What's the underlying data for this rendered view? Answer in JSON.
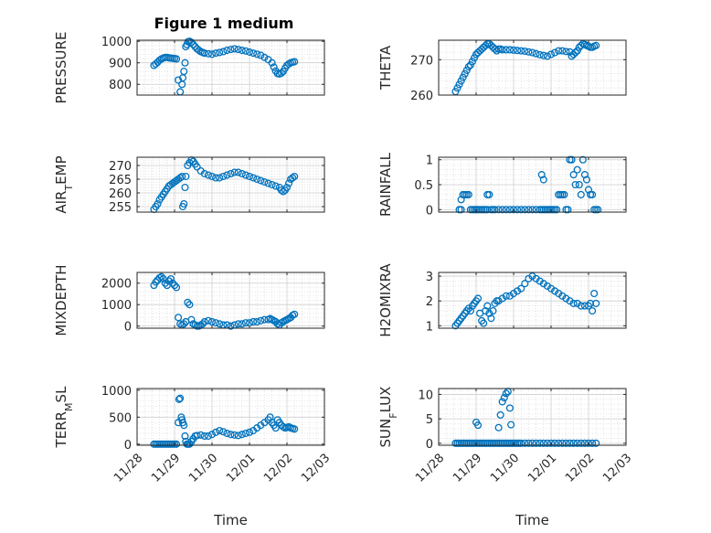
{
  "figure": {
    "title": "Figure 1 medium",
    "marker_color": "#0072bd",
    "x_tick_labels": [
      "11/28",
      "11/29",
      "11/30",
      "12/01",
      "12/02",
      "12/03"
    ]
  },
  "chart_data": [
    {
      "type": "scatter",
      "title": "Figure 1 medium",
      "ylabel": "PRESSURE",
      "xlabel": "",
      "xlim": [
        0,
        5
      ],
      "ylim": [
        750,
        1005
      ],
      "yticks": [
        800,
        900,
        1000
      ],
      "x_tick_labels": [
        "11/28",
        "11/29",
        "11/30",
        "12/01",
        "12/02",
        "12/03"
      ],
      "grid": true,
      "x": [
        0.45,
        0.5,
        0.55,
        0.6,
        0.65,
        0.7,
        0.75,
        0.8,
        0.85,
        0.9,
        0.95,
        1.0,
        1.05,
        1.1,
        1.15,
        1.2,
        1.22,
        1.25,
        1.28,
        1.3,
        1.33,
        1.36,
        1.4,
        1.45,
        1.5,
        1.55,
        1.6,
        1.65,
        1.7,
        1.75,
        1.8,
        1.9,
        2.0,
        2.1,
        2.2,
        2.3,
        2.4,
        2.5,
        2.6,
        2.7,
        2.8,
        2.9,
        3.0,
        3.1,
        3.2,
        3.3,
        3.4,
        3.5,
        3.6,
        3.65,
        3.7,
        3.75,
        3.8,
        3.85,
        3.9,
        3.95,
        4.0,
        4.05,
        4.1,
        4.15,
        4.2
      ],
      "y": [
        888,
        895,
        903,
        912,
        918,
        922,
        925,
        925,
        923,
        922,
        921,
        920,
        918,
        820,
        765,
        800,
        830,
        860,
        900,
        975,
        985,
        998,
        1000,
        995,
        985,
        975,
        965,
        958,
        952,
        948,
        945,
        942,
        940,
        945,
        948,
        952,
        958,
        962,
        965,
        962,
        958,
        955,
        950,
        945,
        940,
        935,
        925,
        915,
        900,
        880,
        862,
        850,
        848,
        852,
        860,
        875,
        888,
        895,
        900,
        903,
        905
      ]
    },
    {
      "type": "scatter",
      "title": "",
      "ylabel": "THETA",
      "xlabel": "",
      "xlim": [
        0,
        5
      ],
      "ylim": [
        260,
        275.5
      ],
      "yticks": [
        260,
        270
      ],
      "x_tick_labels": [
        "11/28",
        "11/29",
        "11/30",
        "12/01",
        "12/02",
        "12/03"
      ],
      "grid": true,
      "x": [
        0.45,
        0.5,
        0.55,
        0.6,
        0.65,
        0.7,
        0.75,
        0.8,
        0.85,
        0.9,
        0.95,
        1.0,
        1.05,
        1.1,
        1.15,
        1.2,
        1.25,
        1.3,
        1.35,
        1.4,
        1.45,
        1.5,
        1.55,
        1.6,
        1.65,
        1.7,
        1.8,
        1.9,
        2.0,
        2.1,
        2.2,
        2.3,
        2.4,
        2.5,
        2.6,
        2.7,
        2.8,
        2.9,
        3.0,
        3.1,
        3.2,
        3.3,
        3.4,
        3.5,
        3.55,
        3.6,
        3.65,
        3.7,
        3.75,
        3.8,
        3.85,
        3.9,
        3.95,
        4.0,
        4.05,
        4.1,
        4.15,
        4.2
      ],
      "y": [
        261,
        262,
        263,
        264,
        265,
        266,
        267,
        268,
        268.5,
        269.5,
        270.5,
        271.5,
        272,
        272.5,
        273,
        273.5,
        274,
        274.5,
        274.5,
        274,
        273.5,
        273,
        272.5,
        273,
        273,
        272.8,
        272.8,
        272.8,
        272.7,
        272.6,
        272.5,
        272.4,
        272.2,
        272,
        271.7,
        271.4,
        271.2,
        271,
        271.5,
        272,
        272.5,
        272.5,
        272.3,
        272.2,
        271,
        271.5,
        272,
        272.5,
        273.5,
        274,
        274.5,
        274.3,
        274,
        273.8,
        273.5,
        273.5,
        273.8,
        274
      ]
    },
    {
      "type": "scatter",
      "title": "",
      "ylabel": "AIR_TEMP",
      "xlabel": "",
      "xlim": [
        0,
        5
      ],
      "ylim": [
        253,
        273
      ],
      "yticks": [
        255,
        260,
        265,
        270
      ],
      "x_tick_labels": [
        "11/28",
        "11/29",
        "11/30",
        "12/01",
        "12/02",
        "12/03"
      ],
      "grid": true,
      "x": [
        0.45,
        0.5,
        0.55,
        0.6,
        0.65,
        0.7,
        0.75,
        0.8,
        0.85,
        0.9,
        0.95,
        1.0,
        1.05,
        1.1,
        1.15,
        1.2,
        1.22,
        1.25,
        1.28,
        1.3,
        1.35,
        1.4,
        1.45,
        1.5,
        1.55,
        1.6,
        1.7,
        1.8,
        1.9,
        2.0,
        2.1,
        2.2,
        2.3,
        2.4,
        2.5,
        2.6,
        2.7,
        2.8,
        2.9,
        3.0,
        3.1,
        3.2,
        3.3,
        3.4,
        3.5,
        3.6,
        3.7,
        3.8,
        3.85,
        3.9,
        3.95,
        4.0,
        4.05,
        4.1,
        4.15,
        4.2
      ],
      "y": [
        254,
        255,
        256,
        257.5,
        258.5,
        259.5,
        260.5,
        261.5,
        262.5,
        263,
        263.5,
        264,
        264.5,
        265,
        265.5,
        266,
        255,
        256,
        262,
        266,
        270,
        271,
        272,
        271.5,
        270.5,
        269.5,
        268,
        267,
        266.5,
        266,
        265.5,
        265.5,
        266,
        266.5,
        267,
        267.5,
        267.5,
        267,
        266.5,
        266,
        265.5,
        265,
        264.5,
        264,
        263.5,
        263,
        262.5,
        262,
        261,
        260.5,
        261,
        262,
        263.5,
        265,
        265.5,
        266
      ]
    },
    {
      "type": "scatter",
      "title": "",
      "ylabel": "RAINFALL",
      "xlabel": "",
      "xlim": [
        0,
        5
      ],
      "ylim": [
        -0.05,
        1.05
      ],
      "yticks": [
        0,
        0.5,
        1
      ],
      "x_tick_labels": [
        "11/28",
        "11/29",
        "11/30",
        "12/01",
        "12/02",
        "12/03"
      ],
      "grid": true,
      "x": [
        0.55,
        0.6,
        0.65,
        0.7,
        0.75,
        0.8,
        0.85,
        0.9,
        0.95,
        1.0,
        1.05,
        1.1,
        1.15,
        1.2,
        1.25,
        1.3,
        1.35,
        1.4,
        1.45,
        1.5,
        1.6,
        1.7,
        1.8,
        1.9,
        2.0,
        2.1,
        2.2,
        2.3,
        2.4,
        2.5,
        2.6,
        2.7,
        2.75,
        2.8,
        2.85,
        2.9,
        2.95,
        3.0,
        3.05,
        3.1,
        3.15,
        3.2,
        3.25,
        3.3,
        3.35,
        3.4,
        3.45,
        3.5,
        3.55,
        3.6,
        3.65,
        3.7,
        3.75,
        3.8,
        3.85,
        3.9,
        3.95,
        4.0,
        4.05,
        4.1,
        4.15,
        4.2,
        4.25,
        0.6,
        1.3,
        2.75,
        2.8,
        1.0
      ],
      "y": [
        0,
        0.2,
        0.3,
        0.3,
        0.3,
        0.3,
        0,
        0,
        0,
        0,
        0,
        0,
        0,
        0,
        0,
        0.3,
        0.3,
        0,
        0,
        0,
        0,
        0,
        0,
        0,
        0,
        0,
        0,
        0,
        0,
        0,
        0,
        0,
        0.7,
        0.6,
        0,
        0,
        0,
        0,
        0,
        0,
        0,
        0.3,
        0.3,
        0.3,
        0.3,
        0,
        0,
        1,
        1,
        0.7,
        0.5,
        0.8,
        0.5,
        0.3,
        1,
        0.7,
        0.6,
        0.4,
        0.3,
        0.3,
        0,
        0,
        0,
        0,
        0,
        0,
        0,
        0
      ]
    },
    {
      "type": "scatter",
      "title": "",
      "ylabel": "MIXDEPTH",
      "xlabel": "",
      "xlim": [
        0,
        5
      ],
      "ylim": [
        -100,
        2500
      ],
      "yticks": [
        0,
        1000,
        2000
      ],
      "x_tick_labels": [
        "11/28",
        "11/29",
        "11/30",
        "12/01",
        "12/02",
        "12/03"
      ],
      "grid": true,
      "x": [
        0.45,
        0.5,
        0.55,
        0.6,
        0.65,
        0.7,
        0.75,
        0.8,
        0.85,
        0.9,
        0.95,
        1.0,
        1.05,
        1.1,
        1.15,
        1.2,
        1.25,
        1.3,
        1.35,
        1.4,
        1.45,
        1.5,
        1.55,
        1.6,
        1.65,
        1.7,
        1.75,
        1.8,
        1.9,
        2.0,
        2.1,
        2.2,
        2.3,
        2.4,
        2.5,
        2.6,
        2.7,
        2.8,
        2.9,
        3.0,
        3.1,
        3.2,
        3.3,
        3.4,
        3.5,
        3.55,
        3.6,
        3.65,
        3.7,
        3.75,
        3.8,
        3.85,
        3.9,
        3.95,
        4.0,
        4.05,
        4.1,
        4.15,
        4.2
      ],
      "y": [
        1900,
        2050,
        2150,
        2250,
        2300,
        2200,
        2000,
        1900,
        2100,
        2200,
        2000,
        1900,
        1800,
        400,
        100,
        50,
        100,
        200,
        1100,
        1000,
        300,
        100,
        50,
        0,
        0,
        50,
        100,
        200,
        250,
        200,
        150,
        100,
        50,
        50,
        0,
        50,
        100,
        100,
        150,
        150,
        200,
        200,
        250,
        300,
        300,
        350,
        300,
        250,
        200,
        100,
        50,
        150,
        200,
        250,
        300,
        350,
        400,
        500,
        550
      ]
    },
    {
      "type": "scatter",
      "title": "",
      "ylabel": "H2OMIXRA",
      "xlabel": "",
      "xlim": [
        0,
        5
      ],
      "ylim": [
        0.9,
        3.15
      ],
      "yticks": [
        1,
        2,
        3
      ],
      "x_tick_labels": [
        "11/28",
        "11/29",
        "11/30",
        "12/01",
        "12/02",
        "12/03"
      ],
      "grid": true,
      "x": [
        0.45,
        0.5,
        0.55,
        0.6,
        0.65,
        0.7,
        0.75,
        0.8,
        0.85,
        0.9,
        0.95,
        1.0,
        1.05,
        1.1,
        1.15,
        1.2,
        1.25,
        1.3,
        1.35,
        1.4,
        1.45,
        1.5,
        1.55,
        1.6,
        1.7,
        1.8,
        1.9,
        2.0,
        2.1,
        2.2,
        2.3,
        2.4,
        2.5,
        2.6,
        2.7,
        2.8,
        2.9,
        3.0,
        3.1,
        3.2,
        3.3,
        3.4,
        3.5,
        3.6,
        3.7,
        3.8,
        3.9,
        4.0,
        4.05,
        4.1,
        4.15,
        4.2
      ],
      "y": [
        1,
        1.1,
        1.2,
        1.3,
        1.4,
        1.5,
        1.6,
        1.7,
        1.6,
        1.8,
        1.9,
        2,
        2.1,
        1.5,
        1.2,
        1.1,
        1.6,
        1.8,
        1.5,
        1.3,
        1.6,
        1.9,
        2,
        2,
        2.1,
        2.2,
        2.2,
        2.3,
        2.4,
        2.5,
        2.7,
        2.9,
        3,
        2.9,
        2.8,
        2.7,
        2.6,
        2.5,
        2.4,
        2.3,
        2.2,
        2.1,
        2,
        1.9,
        1.9,
        1.8,
        1.8,
        1.8,
        1.9,
        1.6,
        2.3,
        1.9
      ]
    },
    {
      "type": "scatter",
      "title": "",
      "ylabel": "TERR_MSL",
      "xlabel": "Time",
      "xlim": [
        0,
        5
      ],
      "ylim": [
        -20,
        1030
      ],
      "yticks": [
        0,
        500,
        1000
      ],
      "x_tick_labels": [
        "11/28",
        "11/29",
        "11/30",
        "12/01",
        "12/02",
        "12/03"
      ],
      "grid": true,
      "x": [
        0.45,
        0.5,
        0.55,
        0.6,
        0.65,
        0.7,
        0.75,
        0.8,
        0.85,
        0.9,
        0.95,
        1.0,
        1.05,
        1.1,
        1.12,
        1.15,
        1.18,
        1.2,
        1.22,
        1.25,
        1.28,
        1.3,
        1.33,
        1.36,
        1.4,
        1.45,
        1.5,
        1.55,
        1.6,
        1.7,
        1.8,
        1.9,
        2.0,
        2.1,
        2.2,
        2.3,
        2.4,
        2.5,
        2.6,
        2.7,
        2.8,
        2.9,
        3.0,
        3.1,
        3.2,
        3.3,
        3.4,
        3.5,
        3.55,
        3.6,
        3.65,
        3.7,
        3.75,
        3.8,
        3.85,
        3.9,
        3.95,
        4.0,
        4.05,
        4.1,
        4.15,
        4.2
      ],
      "y": [
        0,
        0,
        0,
        0,
        0,
        0,
        0,
        0,
        0,
        0,
        0,
        0,
        0,
        400,
        830,
        850,
        500,
        450,
        400,
        350,
        150,
        50,
        0,
        0,
        0,
        50,
        100,
        150,
        160,
        170,
        150,
        150,
        180,
        220,
        250,
        230,
        200,
        180,
        170,
        160,
        180,
        200,
        220,
        250,
        300,
        350,
        400,
        450,
        500,
        400,
        350,
        300,
        450,
        400,
        350,
        320,
        300,
        310,
        320,
        300,
        290,
        280
      ]
    },
    {
      "type": "scatter",
      "title": "",
      "ylabel": "SUN_FLUX",
      "xlabel": "Time",
      "xlim": [
        0,
        5
      ],
      "ylim": [
        -0.4,
        11.2
      ],
      "yticks": [
        0,
        5,
        10
      ],
      "x_tick_labels": [
        "11/28",
        "11/29",
        "11/30",
        "12/01",
        "12/02",
        "12/03"
      ],
      "grid": true,
      "x": [
        0.45,
        0.5,
        0.55,
        0.6,
        0.65,
        0.7,
        0.75,
        0.8,
        0.85,
        0.9,
        0.95,
        1.0,
        1.05,
        1.1,
        1.15,
        1.2,
        1.25,
        1.3,
        1.35,
        1.4,
        1.45,
        1.5,
        1.55,
        1.6,
        1.65,
        1.7,
        1.75,
        1.8,
        1.85,
        1.9,
        1.95,
        2.0,
        2.05,
        2.1,
        2.15,
        2.2,
        2.3,
        2.4,
        2.5,
        2.6,
        2.7,
        2.8,
        2.9,
        3.0,
        3.1,
        3.2,
        3.3,
        3.4,
        3.5,
        3.6,
        3.7,
        3.8,
        3.9,
        4.0,
        4.1,
        4.2,
        1.0,
        1.05,
        1.6,
        1.65,
        1.7,
        1.75,
        1.8,
        1.85,
        1.9,
        1.93
      ],
      "y": [
        0,
        0,
        0,
        0,
        0,
        0,
        0,
        0,
        0,
        0,
        0,
        0,
        0,
        0,
        0,
        0,
        0,
        0,
        0,
        0,
        0,
        0,
        0,
        0,
        0,
        0,
        0,
        0,
        0,
        0,
        0,
        0,
        0,
        0,
        0,
        0,
        0,
        0,
        0,
        0,
        0,
        0,
        0,
        0,
        0,
        0,
        0,
        0,
        0,
        0,
        0,
        0,
        0,
        0,
        0,
        0,
        4.3,
        3.7,
        3.2,
        5.8,
        8.5,
        9.3,
        10.2,
        10.6,
        7.2,
        3.8
      ]
    }
  ]
}
